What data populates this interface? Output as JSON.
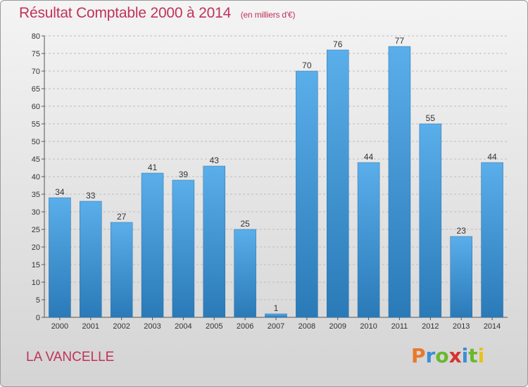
{
  "header": {
    "title": "Résultat Comptable 2000 à 2014",
    "subtitle": "(en milliers d'€)"
  },
  "footer": {
    "commune": "LA VANCELLE",
    "logo": "Proxiti",
    "logo_colors": [
      "#e8792a",
      "#3a8fd6",
      "#6ab82e",
      "#d8322f",
      "#3a8fd6",
      "#6ab82e",
      "#e8c21a"
    ]
  },
  "colors": {
    "bar_top": "#5aaeea",
    "bar_bottom": "#2a7ab8",
    "grid": "#bdbdbd",
    "accent": "#c0325a"
  },
  "chart_data": {
    "type": "bar",
    "title": "Résultat Comptable 2000 à 2014",
    "subtitle": "(en milliers d'€)",
    "categories": [
      "2000",
      "2001",
      "2002",
      "2003",
      "2004",
      "2005",
      "2006",
      "2007",
      "2008",
      "2009",
      "2010",
      "2011",
      "2012",
      "2013",
      "2014"
    ],
    "values": [
      34,
      33,
      27,
      41,
      39,
      43,
      25,
      1,
      70,
      76,
      44,
      77,
      55,
      23,
      44
    ],
    "ylim": [
      0,
      80
    ],
    "yticks": [
      0,
      5,
      10,
      15,
      20,
      25,
      30,
      35,
      40,
      45,
      50,
      55,
      60,
      65,
      70,
      75,
      80
    ],
    "grid": true,
    "xlabel": "",
    "ylabel": ""
  }
}
